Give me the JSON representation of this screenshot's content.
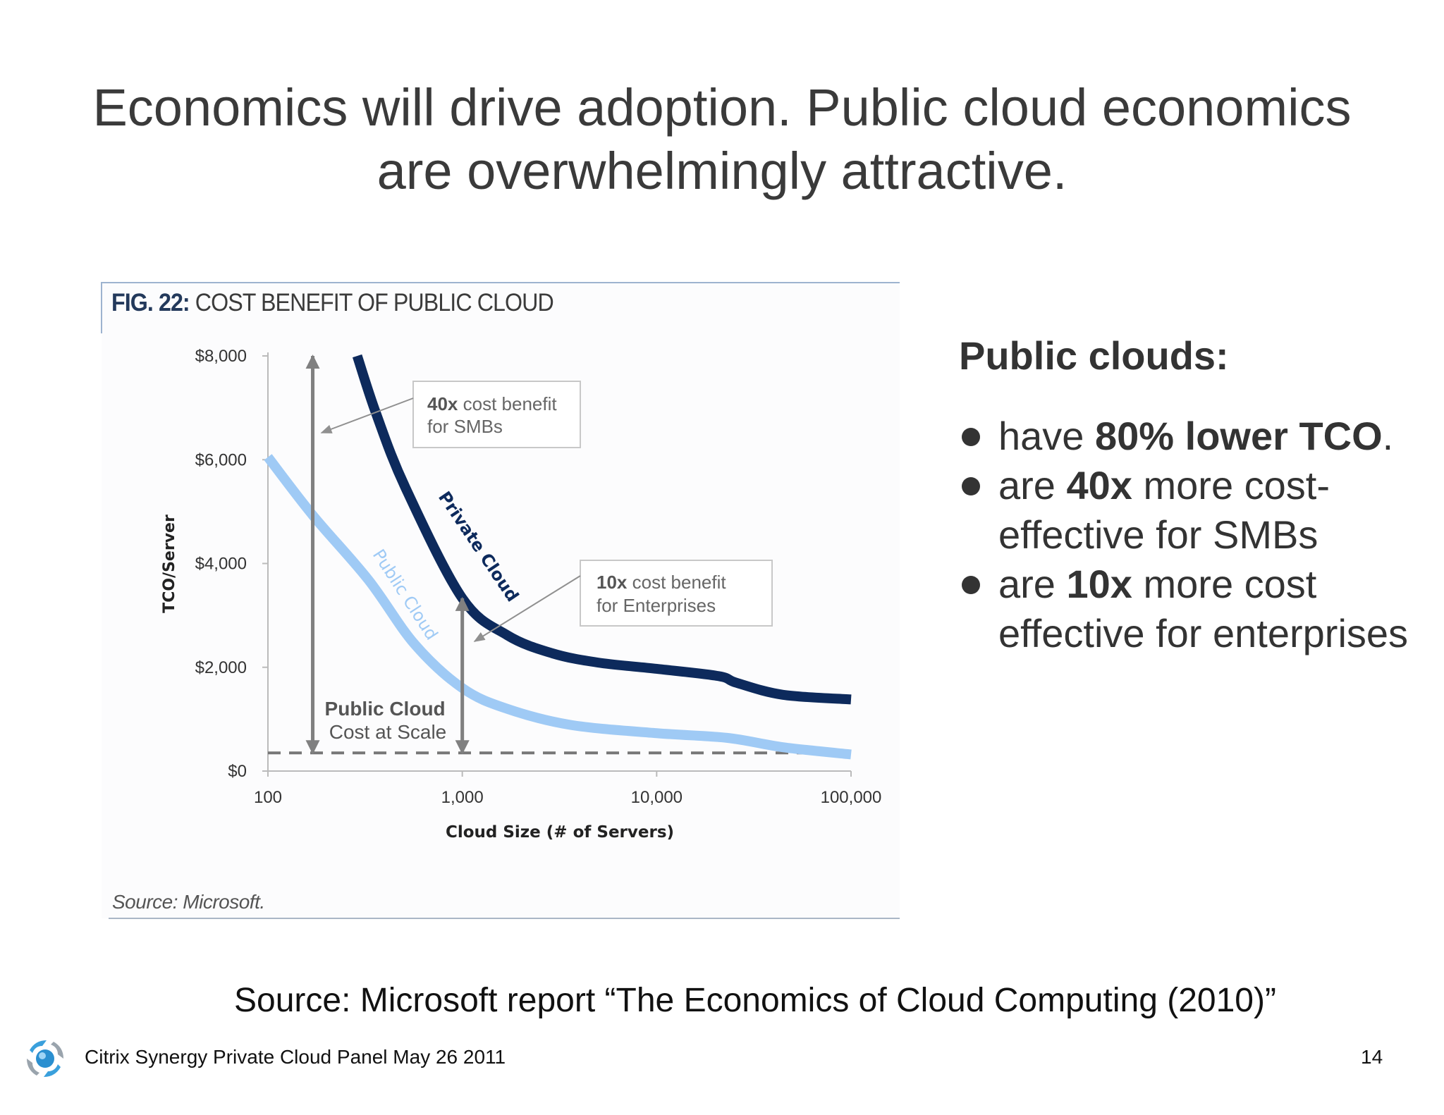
{
  "slide": {
    "title_line1": "Economics will drive adoption. Public cloud economics",
    "title_line2": "are overwhelmingly attractive.",
    "figure": {
      "label": "FIG. 22:",
      "title": "COST BENEFIT OF PUBLIC CLOUD",
      "source": "Source: Microsoft."
    },
    "right": {
      "heading": "Public clouds:",
      "bullets": [
        {
          "pre": "have ",
          "bold": "80% lower TCO",
          "post": "."
        },
        {
          "pre": "are ",
          "bold": "40x",
          "post": " more cost-effective for SMBs"
        },
        {
          "pre": "are ",
          "bold": "10x",
          "post": " more cost effective for enterprises"
        }
      ]
    },
    "source_line": "Source: Microsoft report “The Economics of Cloud Computing (2010)”",
    "footer": "Citrix Synergy Private Cloud Panel May 26 2011",
    "page_number": "14"
  },
  "chart_data": {
    "type": "line",
    "title": "COST BENEFIT OF PUBLIC CLOUD",
    "xlabel": "Cloud Size (# of Servers)",
    "ylabel": "TCO/Server",
    "x_scale": "log",
    "xlim": [
      100,
      100000
    ],
    "ylim": [
      0,
      8000
    ],
    "x_ticks": [
      "100",
      "1,000",
      "10,000",
      "100,000"
    ],
    "x_tick_values": [
      100,
      1000,
      10000,
      100000
    ],
    "y_ticks": [
      "$0",
      "$2,000",
      "$4,000",
      "$6,000",
      "$8,000"
    ],
    "y_tick_values": [
      0,
      2000,
      4000,
      6000,
      8000
    ],
    "grid": false,
    "series": [
      {
        "name": "Private Cloud",
        "color": "#0d2a5c",
        "x": [
          288,
          361,
          510,
          1000,
          1700,
          2900,
          5000,
          10000,
          20800,
          25800,
          44600,
          100000
        ],
        "y": [
          8000,
          6880,
          5460,
          3330,
          2620,
          2270,
          2090,
          1970,
          1830,
          1700,
          1470,
          1380
        ]
      },
      {
        "name": "Public Cloud",
        "color": "#9fcaf5",
        "x": [
          100,
          170,
          328,
          567,
          1000,
          1700,
          3600,
          10000,
          23000,
          44600,
          100000
        ],
        "y": [
          6050,
          4930,
          3690,
          2450,
          1600,
          1200,
          890,
          730,
          640,
          460,
          320
        ]
      }
    ],
    "reference_line": {
      "label_bold": "Public Cloud",
      "label": "Cost at Scale",
      "y": 350,
      "color": "#777777"
    },
    "annotations": [
      {
        "bold": "40x",
        "text": " cost benefit",
        "line2": "for SMBs",
        "arrow_x": 170,
        "from_y": 8000,
        "to_y": 350
      },
      {
        "bold": "10x",
        "text": " cost benefit",
        "line2": "for Enterprises",
        "arrow_x": 1000,
        "from_y": 3330,
        "to_y": 350
      }
    ]
  }
}
